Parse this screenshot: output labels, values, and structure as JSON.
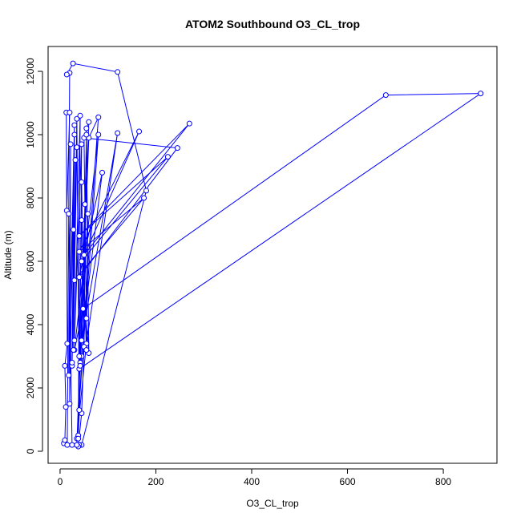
{
  "chart_data": {
    "type": "line",
    "title": "ATOM2 Southbound O3_CL_trop",
    "x_label": "O3_CL_trop",
    "y_label": "Altitude (m)",
    "series": [
      {
        "name": "O3_CL_trop",
        "color": "#0000ff",
        "x": [
          8,
          10,
          12,
          10,
          15,
          13,
          20,
          14,
          18,
          25,
          15,
          20,
          14,
          27,
          120,
          180,
          45,
          40,
          38,
          45,
          50,
          55,
          60,
          35,
          42,
          60,
          80,
          45,
          38,
          40,
          878,
          680,
          48,
          30,
          80,
          35,
          55,
          120,
          45,
          88,
          40,
          245,
          50,
          55,
          60,
          55,
          50,
          270,
          40,
          225,
          45,
          165,
          40,
          175,
          30,
          35,
          25,
          28,
          30,
          20,
          22,
          18,
          30,
          25,
          32,
          28,
          35,
          40,
          45,
          30,
          42,
          38,
          45,
          50,
          52,
          40,
          45,
          55,
          58,
          42
        ],
        "values": [
          250,
          350,
          1400,
          2700,
          3400,
          10700,
          10700,
          7600,
          7500,
          200,
          200,
          11950,
          11900,
          12250,
          11980,
          8230,
          200,
          200,
          150,
          1200,
          3300,
          10200,
          10400,
          200,
          2800,
          9900,
          10550,
          3000,
          500,
          2600,
          11300,
          11250,
          4500,
          3200,
          10000,
          400,
          3400,
          10050,
          3500,
          8800,
          5500,
          9580,
          9900,
          4200,
          3100,
          10000,
          6200,
          10350,
          6800,
          9300,
          6000,
          10100,
          6300,
          8000,
          5400,
          9600,
          2700,
          7000,
          10000,
          1500,
          9700,
          2400,
          10300,
          2800,
          9200,
          3200,
          10500,
          1300,
          9700,
          3500,
          10600,
          400,
          8500,
          3300,
          7800,
          3000,
          7300,
          3200,
          7500,
          2700
        ]
      }
    ],
    "xlim": [
      -25,
      912
    ],
    "ylim": [
      -380,
      12785
    ],
    "xticks": [
      0,
      200,
      400,
      600,
      800
    ],
    "yticks": [
      0,
      2000,
      4000,
      6000,
      8000,
      10000,
      12000
    ]
  }
}
